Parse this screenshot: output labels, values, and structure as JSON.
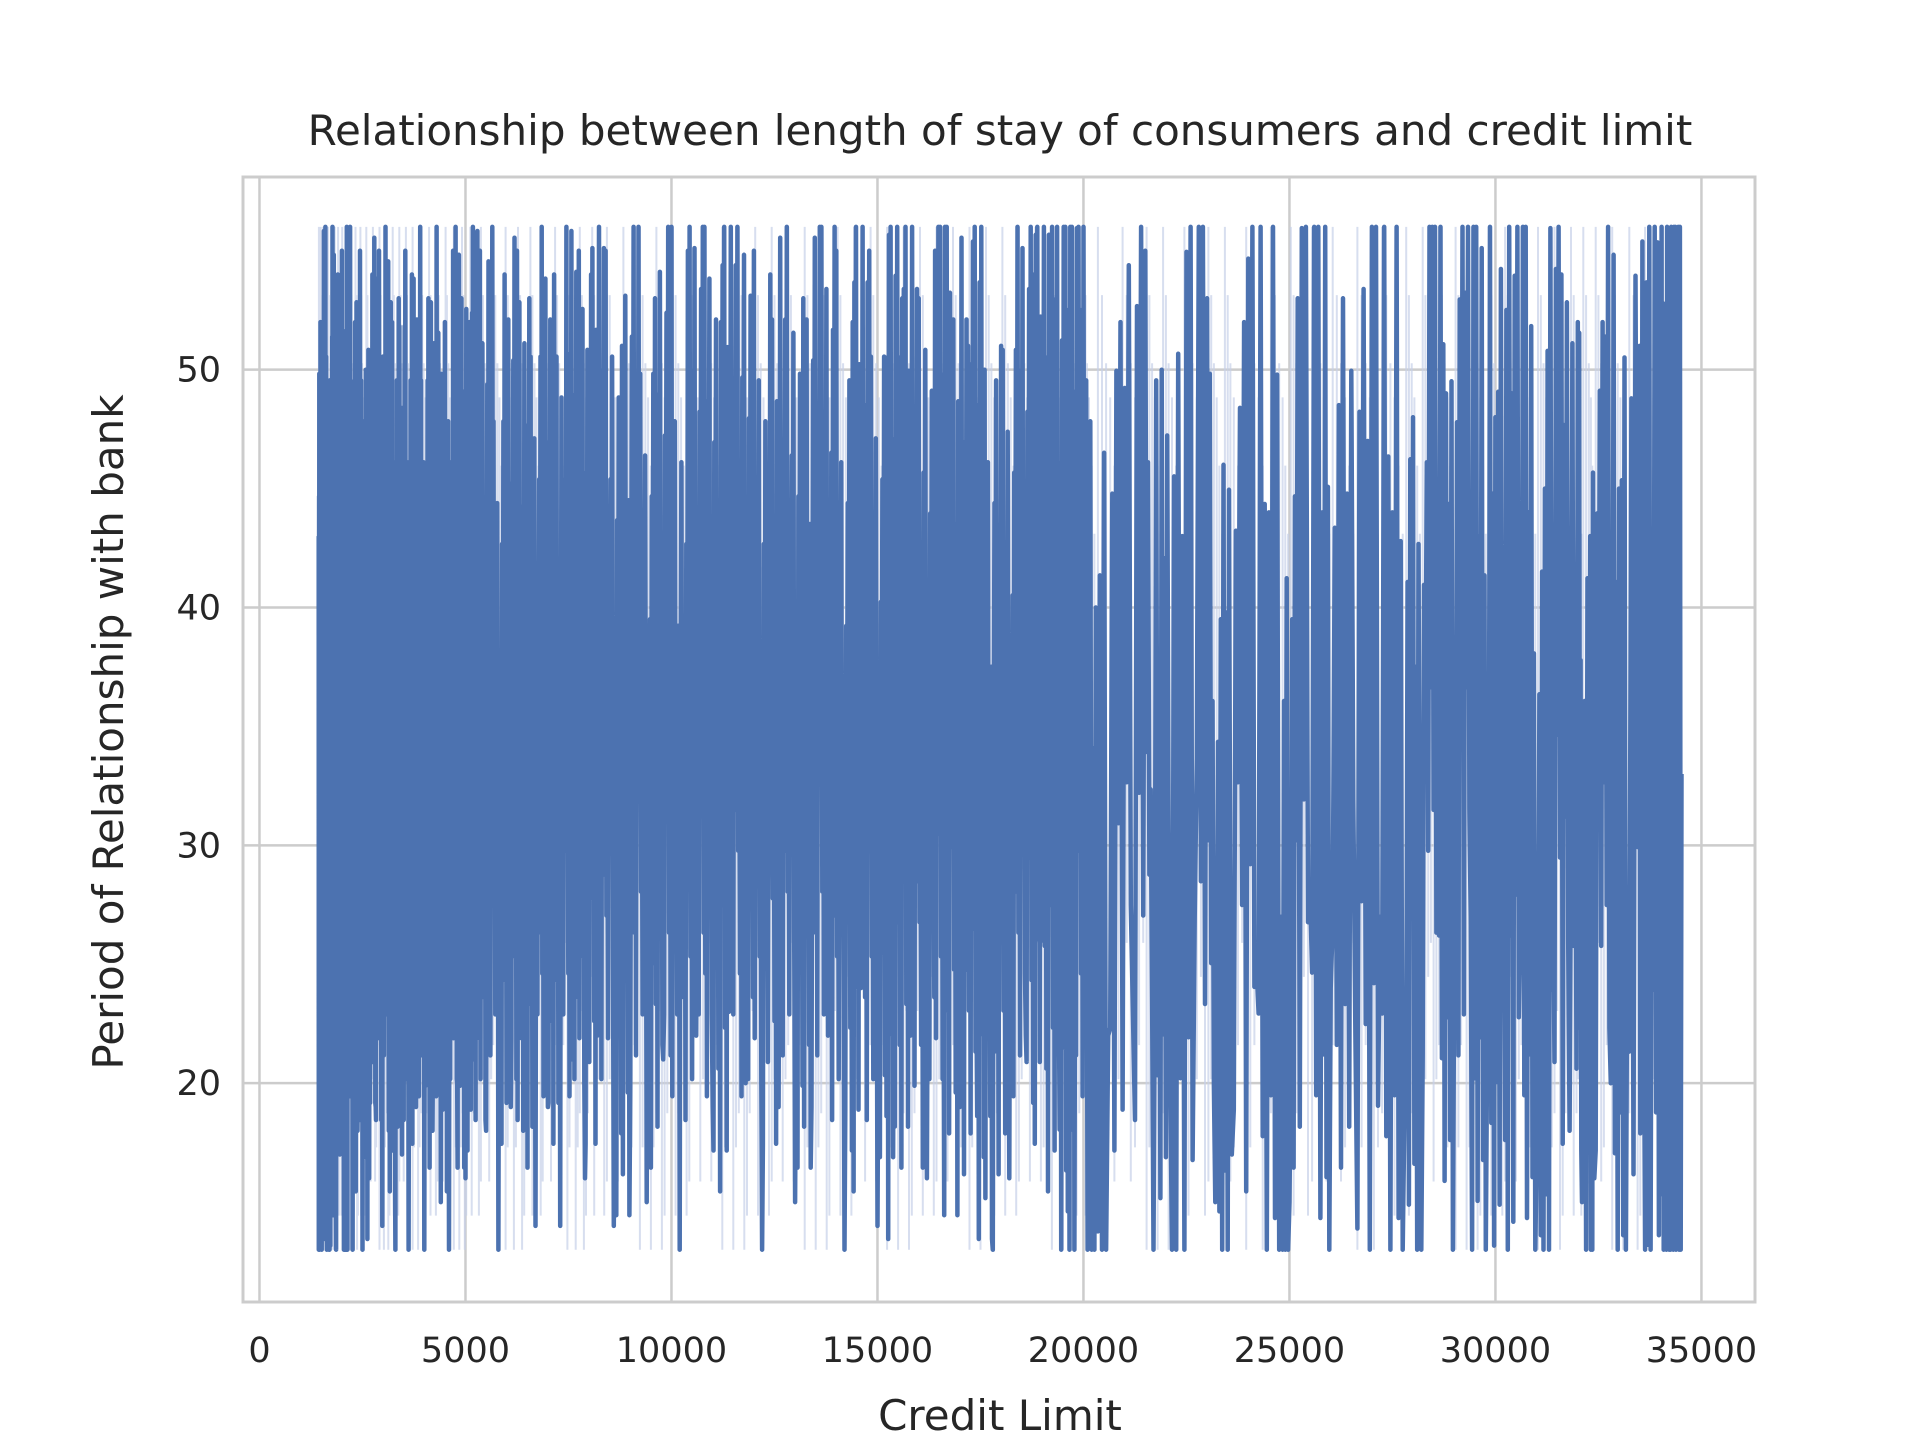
{
  "chart_data": {
    "type": "line",
    "title": "Relationship between length of stay of consumers and credit limit",
    "xlabel": "Credit Limit",
    "ylabel": "Period of Relationship with bank",
    "xlim": [
      -400,
      36300
    ],
    "ylim": [
      10.8,
      58.1
    ],
    "xticks": [
      0,
      5000,
      10000,
      15000,
      20000,
      25000,
      30000,
      35000
    ],
    "xtick_labels": [
      "0",
      "5000",
      "10000",
      "15000",
      "20000",
      "25000",
      "30000",
      "35000"
    ],
    "yticks": [
      20,
      30,
      40,
      50
    ],
    "ytick_labels": [
      "20",
      "30",
      "40",
      "50"
    ],
    "grid": true,
    "colors": {
      "line": "#4c72b0",
      "band": "#c6d0e8",
      "grid": "#cccccc",
      "spine": "#cccccc",
      "text": "#262626"
    },
    "series": [
      {
        "x_range": [
          1438,
          34516
        ],
        "y_range": [
          13,
          56
        ],
        "points": [
          [
            1438,
            43
          ],
          [
            1460,
            15
          ],
          [
            1480,
            52
          ],
          [
            1510,
            13
          ],
          [
            1540,
            50
          ],
          [
            1570,
            21
          ],
          [
            1600,
            56
          ],
          [
            1630,
            14
          ],
          [
            1660,
            49
          ],
          [
            1700,
            13
          ],
          [
            1740,
            48
          ],
          [
            1780,
            20
          ],
          [
            1820,
            51
          ],
          [
            1860,
            13
          ],
          [
            1900,
            54
          ],
          [
            1950,
            17
          ],
          [
            2000,
            55
          ],
          [
            2050,
            13
          ],
          [
            2100,
            46
          ],
          [
            2150,
            22
          ],
          [
            2200,
            56
          ],
          [
            2260,
            13
          ],
          [
            2320,
            52
          ],
          [
            2380,
            18
          ],
          [
            2440,
            55
          ],
          [
            2500,
            13
          ],
          [
            2580,
            50
          ],
          [
            2660,
            16
          ],
          [
            2740,
            54
          ],
          [
            2820,
            19
          ],
          [
            2900,
            55
          ],
          [
            2980,
            14
          ],
          [
            3060,
            56
          ],
          [
            3140,
            18
          ],
          [
            3220,
            52
          ],
          [
            3300,
            13
          ],
          [
            3380,
            53
          ],
          [
            3460,
            17
          ],
          [
            3540,
            55
          ],
          [
            3620,
            13
          ],
          [
            3700,
            54
          ],
          [
            3800,
            19
          ],
          [
            3900,
            56
          ],
          [
            4000,
            13
          ],
          [
            4100,
            53
          ],
          [
            4200,
            18
          ],
          [
            4300,
            56
          ],
          [
            4400,
            15
          ],
          [
            4500,
            52
          ],
          [
            4600,
            13
          ],
          [
            4700,
            55
          ],
          [
            4800,
            20
          ],
          [
            4900,
            53
          ],
          [
            5000,
            16
          ],
          [
            5100,
            52
          ],
          [
            5200,
            21
          ],
          [
            5350,
            55
          ],
          [
            5500,
            18
          ],
          [
            5650,
            56
          ],
          [
            5800,
            13
          ],
          [
            5950,
            54
          ],
          [
            6100,
            19
          ],
          [
            6250,
            55
          ],
          [
            6400,
            18
          ],
          [
            6550,
            53
          ],
          [
            6700,
            14
          ],
          [
            6850,
            56
          ],
          [
            7000,
            19
          ],
          [
            7150,
            54
          ],
          [
            7300,
            14
          ],
          [
            7450,
            56
          ],
          [
            7600,
            21
          ],
          [
            7750,
            55
          ],
          [
            7900,
            16
          ],
          [
            8050,
            54
          ],
          [
            8200,
            22
          ],
          [
            8400,
            55
          ],
          [
            8600,
            14
          ],
          [
            8800,
            51
          ],
          [
            9000,
            20
          ],
          [
            9200,
            56
          ],
          [
            9400,
            15
          ],
          [
            9600,
            53
          ],
          [
            9800,
            21
          ],
          [
            10000,
            56
          ],
          [
            10200,
            13
          ],
          [
            10400,
            55
          ],
          [
            10600,
            22
          ],
          [
            10800,
            56
          ],
          [
            11000,
            19
          ],
          [
            11200,
            52
          ],
          [
            11400,
            23
          ],
          [
            11600,
            56
          ],
          [
            11800,
            20
          ],
          [
            12000,
            55
          ],
          [
            12200,
            13
          ],
          [
            12400,
            54
          ],
          [
            12600,
            19
          ],
          [
            12800,
            56
          ],
          [
            13000,
            15
          ],
          [
            13200,
            53
          ],
          [
            13400,
            19
          ],
          [
            13600,
            56
          ],
          [
            13800,
            22
          ],
          [
            14000,
            55
          ],
          [
            14200,
            13
          ],
          [
            14400,
            52
          ],
          [
            14600,
            24
          ],
          [
            14800,
            55
          ],
          [
            15000,
            14
          ],
          [
            15200,
            50
          ],
          [
            15400,
            26
          ],
          [
            15600,
            53
          ],
          [
            15800,
            22
          ],
          [
            16000,
            53
          ],
          [
            16200,
            16
          ],
          [
            16400,
            55
          ],
          [
            16600,
            27
          ],
          [
            16800,
            51
          ],
          [
            17000,
            19
          ],
          [
            17200,
            51
          ],
          [
            17400,
            24
          ],
          [
            17600,
            50
          ],
          [
            17800,
            13
          ],
          [
            18000,
            51
          ],
          [
            18200,
            16
          ],
          [
            18400,
            56
          ],
          [
            18600,
            22
          ],
          [
            18800,
            54
          ],
          [
            19000,
            26
          ],
          [
            19200,
            52
          ],
          [
            19400,
            25
          ],
          [
            19600,
            46
          ],
          [
            19800,
            28
          ],
          [
            20000,
            56
          ],
          [
            20100,
            13
          ],
          [
            20300,
            40
          ],
          [
            20600,
            22
          ],
          [
            20900,
            52
          ],
          [
            21200,
            23
          ],
          [
            21500,
            55
          ],
          [
            21700,
            13
          ],
          [
            21900,
            50
          ],
          [
            22100,
            21
          ],
          [
            22400,
            43
          ],
          [
            22700,
            27
          ],
          [
            23000,
            53
          ],
          [
            23200,
            15
          ],
          [
            23400,
            46
          ],
          [
            23600,
            17
          ],
          [
            23900,
            52
          ],
          [
            24200,
            25
          ],
          [
            24500,
            44
          ],
          [
            24800,
            27
          ],
          [
            25000,
            15
          ],
          [
            25200,
            53
          ],
          [
            25500,
            28
          ],
          [
            25800,
            44
          ],
          [
            26000,
            24
          ],
          [
            26300,
            53
          ],
          [
            26600,
            22
          ],
          [
            26900,
            47
          ],
          [
            27200,
            27
          ],
          [
            27500,
            44
          ],
          [
            27800,
            20
          ],
          [
            28000,
            48
          ],
          [
            28200,
            13
          ],
          [
            28400,
            56
          ],
          [
            28600,
            30
          ],
          [
            28800,
            49
          ],
          [
            29000,
            25
          ],
          [
            29200,
            56
          ],
          [
            29400,
            27
          ],
          [
            29600,
            43
          ],
          [
            29800,
            22
          ],
          [
            30000,
            48
          ],
          [
            30200,
            28
          ],
          [
            30400,
            49
          ],
          [
            30600,
            26
          ],
          [
            30800,
            44
          ],
          [
            31000,
            17
          ],
          [
            31200,
            45
          ],
          [
            31400,
            28
          ],
          [
            31600,
            54
          ],
          [
            31800,
            18
          ],
          [
            32000,
            52
          ],
          [
            32100,
            15
          ],
          [
            32300,
            43
          ],
          [
            32400,
            16
          ],
          [
            32600,
            52
          ],
          [
            32800,
            20
          ],
          [
            33000,
            45
          ],
          [
            33200,
            26
          ],
          [
            33500,
            51
          ],
          [
            33600,
            24
          ],
          [
            33800,
            36
          ],
          [
            34000,
            45
          ],
          [
            34100,
            30
          ],
          [
            34200,
            42
          ],
          [
            34300,
            29
          ],
          [
            34400,
            36
          ],
          [
            34516,
            33
          ]
        ]
      }
    ]
  }
}
